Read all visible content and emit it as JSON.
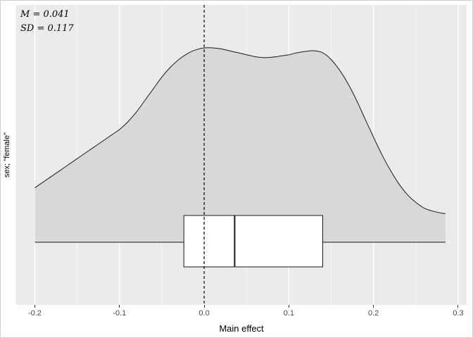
{
  "annotation": {
    "line1": "M = 0.041",
    "line2": "SD = 0.117"
  },
  "colors": {
    "panel_background": "#EBEBEB",
    "grid_major": "#FFFFFF",
    "grid_minor": "#FFFFFF",
    "density_fill": "#D8D8D8",
    "density_line": "#1A1A1A",
    "boxplot_fill": "#FFFFFF",
    "boxplot_line": "#1A1A1A",
    "reference_line": "#000000",
    "tick_label": "#4D4D4D",
    "axis_title": "#000000"
  },
  "chart_data": {
    "type": "area",
    "subtype": "density-with-boxplot",
    "title": "",
    "xlabel": "Main effect",
    "ylabel": "sex; \"female\"",
    "mean": 0.041,
    "sd": 0.117,
    "xlim": [
      -0.222,
      0.31
    ],
    "x_ticks": [
      -0.2,
      -0.1,
      0,
      0.1,
      0.2,
      0.3
    ],
    "x_tick_labels": [
      "-0.2",
      "-0.1",
      "0.0",
      "0.1",
      "0.2",
      "0.3"
    ],
    "x_minor_ticks": [
      -0.15,
      -0.05,
      0.05,
      0.15,
      0.25
    ],
    "grid": true,
    "legend": false,
    "reference_line_x": 0,
    "density": {
      "d_scale": "normalized, max = 1 at peak",
      "x": [
        -0.2,
        -0.19,
        -0.18,
        -0.17,
        -0.16,
        -0.15,
        -0.14,
        -0.13,
        -0.12,
        -0.11,
        -0.1,
        -0.09,
        -0.08,
        -0.07,
        -0.06,
        -0.05,
        -0.04,
        -0.03,
        -0.02,
        -0.01,
        0.0,
        0.01,
        0.02,
        0.03,
        0.04,
        0.05,
        0.06,
        0.07,
        0.08,
        0.09,
        0.1,
        0.11,
        0.12,
        0.13,
        0.14,
        0.15,
        0.16,
        0.17,
        0.18,
        0.19,
        0.2,
        0.21,
        0.22,
        0.23,
        0.24,
        0.25,
        0.26,
        0.27,
        0.28,
        0.285
      ],
      "d": [
        0.28,
        0.31,
        0.34,
        0.37,
        0.4,
        0.43,
        0.46,
        0.49,
        0.52,
        0.55,
        0.58,
        0.62,
        0.67,
        0.73,
        0.79,
        0.85,
        0.9,
        0.94,
        0.97,
        0.99,
        1.0,
        1.0,
        0.995,
        0.985,
        0.975,
        0.965,
        0.955,
        0.95,
        0.952,
        0.958,
        0.965,
        0.975,
        0.982,
        0.985,
        0.975,
        0.94,
        0.885,
        0.815,
        0.73,
        0.635,
        0.54,
        0.45,
        0.37,
        0.3,
        0.245,
        0.205,
        0.175,
        0.16,
        0.15,
        0.148
      ]
    },
    "boxplot": {
      "q1": -0.024,
      "median": 0.036,
      "q3": 0.14,
      "line_extent": [
        -0.2,
        0.285
      ]
    }
  }
}
